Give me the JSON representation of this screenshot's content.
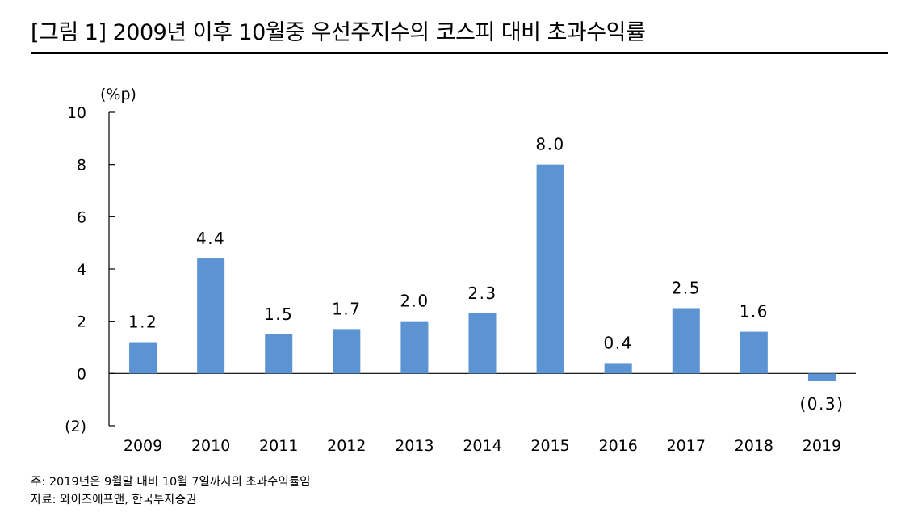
{
  "figure": {
    "title": "[그림 1] 2009년 이후 10월중 우선주지수의 코스피 대비 초과수익률",
    "note": "주: 2019년은 9월말 대비 10월 7일까지의 초과수익률임",
    "source": "자료: 와이즈에프앤, 한국투자증권"
  },
  "chart_data": {
    "type": "bar",
    "title": "[그림 1] 2009년 이후 10월중 우선주지수의 코스피 대비 초과수익률",
    "unit_label": "(%p)",
    "categories": [
      "2009",
      "2010",
      "2011",
      "2012",
      "2013",
      "2014",
      "2015",
      "2016",
      "2017",
      "2018",
      "2019"
    ],
    "values": [
      1.2,
      4.4,
      1.5,
      1.7,
      2.0,
      2.3,
      8.0,
      0.4,
      2.5,
      1.6,
      -0.3
    ],
    "value_labels": [
      "1.2",
      "4.4",
      "1.5",
      "1.7",
      "2.0",
      "2.3",
      "8.0",
      "0.4",
      "2.5",
      "1.6",
      "(0.3)"
    ],
    "y_ticks": [
      10,
      8,
      6,
      4,
      2,
      0,
      -2
    ],
    "y_tick_labels": [
      "10",
      "8",
      "6",
      "4",
      "2",
      "0",
      "(2)"
    ],
    "ylim": [
      -2,
      10
    ],
    "grid": false,
    "legend": "none",
    "bar_color": "#5b93d3"
  }
}
